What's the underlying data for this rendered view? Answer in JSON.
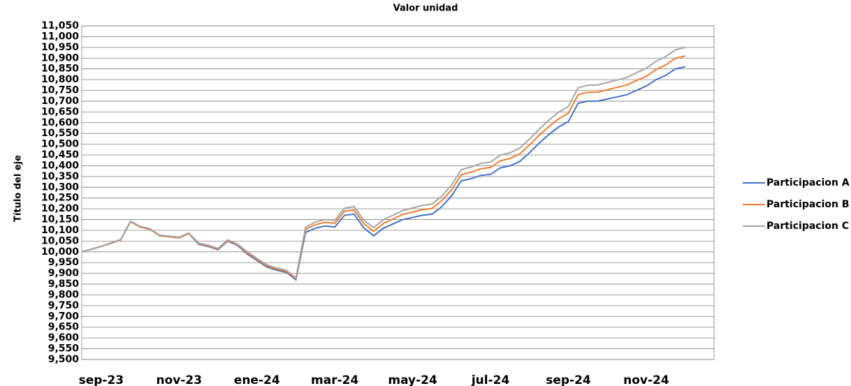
{
  "chart_data": {
    "type": "line",
    "title": "Valor unidad",
    "y_label": "Título del eje",
    "x": [
      null,
      null,
      "sep-23",
      null,
      null,
      null,
      null,
      null,
      null,
      null,
      "nov-23",
      null,
      null,
      null,
      null,
      null,
      null,
      null,
      "ene-24",
      null,
      null,
      null,
      null,
      null,
      null,
      null,
      "mar-24",
      null,
      null,
      null,
      null,
      null,
      null,
      null,
      "may-24",
      null,
      null,
      null,
      null,
      null,
      null,
      null,
      "jul-24",
      null,
      null,
      null,
      null,
      null,
      null,
      null,
      "sep-24",
      null,
      null,
      null,
      null,
      null,
      null,
      null,
      "nov-24",
      null,
      null,
      null,
      null
    ],
    "series": [
      {
        "name": "Participacion A",
        "color": "#4472c4",
        "values": [
          10000,
          10012,
          10025,
          10040,
          10055,
          10140,
          10115,
          10105,
          10075,
          10070,
          10065,
          10085,
          10035,
          10025,
          10010,
          10050,
          10030,
          9990,
          9960,
          9930,
          9915,
          9905,
          9870,
          10090,
          10110,
          10120,
          10115,
          10170,
          10175,
          10110,
          10075,
          10110,
          10130,
          10150,
          10160,
          10170,
          10175,
          10210,
          10260,
          10330,
          10340,
          10355,
          10360,
          10390,
          10400,
          10420,
          10460,
          10505,
          10545,
          10580,
          10605,
          10690,
          10700,
          10700,
          10710,
          10720,
          10730,
          10750,
          10770,
          10800,
          10820,
          10850,
          10860
        ]
      },
      {
        "name": "Participacion B",
        "color": "#ed7d31",
        "values": [
          10000,
          10012,
          10025,
          10040,
          10055,
          10140,
          10115,
          10105,
          10075,
          10070,
          10065,
          10085,
          10038,
          10028,
          10013,
          10053,
          10033,
          9995,
          9965,
          9935,
          9920,
          9910,
          9875,
          10105,
          10126,
          10137,
          10133,
          10189,
          10194,
          10130,
          10096,
          10132,
          10153,
          10174,
          10185,
          10196,
          10202,
          10238,
          10288,
          10359,
          10370,
          10386,
          10392,
          10423,
          10434,
          10455,
          10496,
          10542,
          10582,
          10618,
          10644,
          10730,
          10741,
          10742,
          10753,
          10764,
          10775,
          10796,
          10816,
          10847,
          10868,
          10899,
          10910
        ]
      },
      {
        "name": "Participacion C",
        "color": "#a5a5a5",
        "values": [
          10000,
          10013,
          10026,
          10042,
          10057,
          10143,
          10118,
          10108,
          10078,
          10073,
          10068,
          10088,
          10041,
          10031,
          10016,
          10056,
          10036,
          10000,
          9970,
          9940,
          9925,
          9915,
          9880,
          10115,
          10138,
          10150,
          10147,
          10203,
          10210,
          10146,
          10113,
          10149,
          10171,
          10192,
          10204,
          10216,
          10222,
          10259,
          10311,
          10382,
          10394,
          10411,
          10417,
          10449,
          10460,
          10482,
          10524,
          10570,
          10612,
          10649,
          10675,
          10762,
          10774,
          10775,
          10787,
          10798,
          10810,
          10832,
          10853,
          10885,
          10907,
          10938,
          10950
        ]
      }
    ],
    "ylim": [
      9500,
      11050
    ],
    "yticks": [
      {
        "value": 9500,
        "label": "9,500"
      },
      {
        "value": 9550,
        "label": "9,550"
      },
      {
        "value": 9600,
        "label": "9,600"
      },
      {
        "value": 9650,
        "label": "9,650"
      },
      {
        "value": 9700,
        "label": "9,700"
      },
      {
        "value": 9750,
        "label": "9,750"
      },
      {
        "value": 9800,
        "label": "9,800"
      },
      {
        "value": 9850,
        "label": "9,850"
      },
      {
        "value": 9900,
        "label": "9,900"
      },
      {
        "value": 9950,
        "label": "9,950"
      },
      {
        "value": 10000,
        "label": "10,000"
      },
      {
        "value": 10050,
        "label": "10,050"
      },
      {
        "value": 10100,
        "label": "10,100"
      },
      {
        "value": 10150,
        "label": "10,150"
      },
      {
        "value": 10200,
        "label": "10,200"
      },
      {
        "value": 10250,
        "label": "10,250"
      },
      {
        "value": 10300,
        "label": "10,300"
      },
      {
        "value": 10350,
        "label": "10,350"
      },
      {
        "value": 10400,
        "label": "10,400"
      },
      {
        "value": 10450,
        "label": "10,450"
      },
      {
        "value": 10500,
        "label": "10,500"
      },
      {
        "value": 10550,
        "label": "10,550"
      },
      {
        "value": 10600,
        "label": "10,600"
      },
      {
        "value": 10650,
        "label": "10,650"
      },
      {
        "value": 10700,
        "label": "10,700"
      },
      {
        "value": 10750,
        "label": "10,750"
      },
      {
        "value": 10800,
        "label": "10,800"
      },
      {
        "value": 10850,
        "label": "10,850"
      },
      {
        "value": 10900,
        "label": "10,900"
      },
      {
        "value": 10950,
        "label": "10,950"
      },
      {
        "value": 11000,
        "label": "11,000"
      },
      {
        "value": 11050,
        "label": "11,050"
      }
    ],
    "grid": true,
    "legend": "right"
  }
}
